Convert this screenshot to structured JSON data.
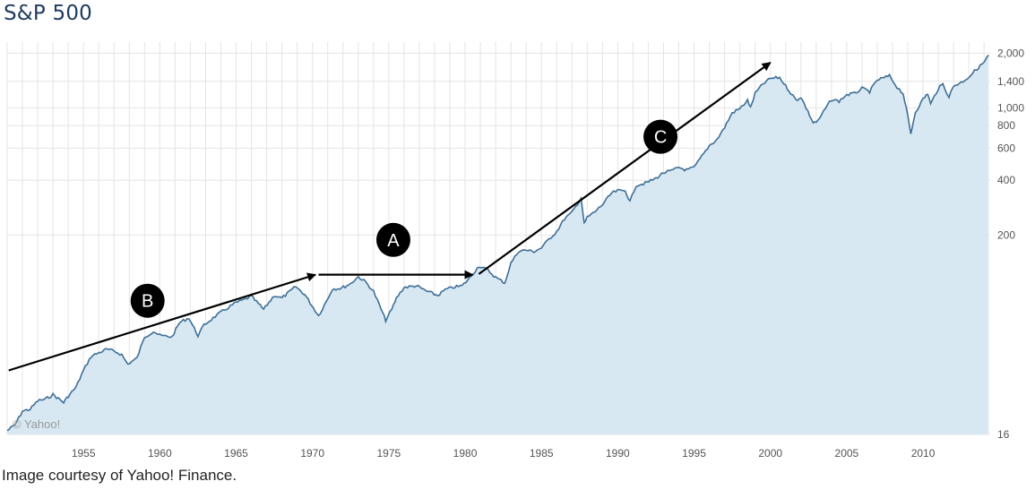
{
  "title": "S&P 500",
  "caption": "Image courtesy of Yahoo! Finance.",
  "watermark": "© Yahoo!",
  "colors": {
    "line": "#3f6f96",
    "fill": "#d8e8f3",
    "grid": "#e4e4e4",
    "arrow": "#000000",
    "marker": "#000000"
  },
  "chart_data": {
    "type": "area",
    "title": "S&P 500",
    "xlabel": "",
    "ylabel": "",
    "xlim": [
      1950,
      2014.4
    ],
    "ylim": [
      16,
      2300
    ],
    "y_scale": "log",
    "grid": true,
    "x_ticks": [
      {
        "value": 1955,
        "label": "1955"
      },
      {
        "value": 1960,
        "label": "1960"
      },
      {
        "value": 1965,
        "label": "1965"
      },
      {
        "value": 1970,
        "label": "1970"
      },
      {
        "value": 1975,
        "label": "1975"
      },
      {
        "value": 1980,
        "label": "1980"
      },
      {
        "value": 1985,
        "label": "1985"
      },
      {
        "value": 1990,
        "label": "1990"
      },
      {
        "value": 1995,
        "label": "1995"
      },
      {
        "value": 2000,
        "label": "2000"
      },
      {
        "value": 2005,
        "label": "2005"
      },
      {
        "value": 2010,
        "label": "2010"
      }
    ],
    "y_ticks": [
      {
        "value": 16,
        "label": "16"
      },
      {
        "value": 200,
        "label": "200"
      },
      {
        "value": 400,
        "label": "400"
      },
      {
        "value": 600,
        "label": "600"
      },
      {
        "value": 800,
        "label": "800"
      },
      {
        "value": 1000,
        "label": "1,000"
      },
      {
        "value": 1400,
        "label": "1,400"
      },
      {
        "value": 2000,
        "label": "2,000"
      }
    ],
    "series": [
      {
        "x": [
          1950.0,
          1950.5,
          1951.0,
          1951.5,
          1952.0,
          1952.5,
          1953.0,
          1953.7,
          1954.0,
          1954.5,
          1955.0,
          1955.5,
          1956.0,
          1956.5,
          1957.0,
          1957.5,
          1957.9,
          1958.5,
          1959.0,
          1959.6,
          1960.0,
          1960.8,
          1961.3,
          1961.9,
          1962.5,
          1962.9,
          1963.5,
          1964.0,
          1964.5,
          1965.0,
          1965.5,
          1966.0,
          1966.8,
          1967.5,
          1968.0,
          1968.9,
          1969.5,
          1970.4,
          1970.9,
          1971.3,
          1971.9,
          1972.5,
          1973.0,
          1973.5,
          1974.0,
          1974.5,
          1974.8,
          1975.2,
          1975.5,
          1976.0,
          1976.8,
          1977.5,
          1978.2,
          1978.7,
          1979.2,
          1979.8,
          1980.3,
          1980.9,
          1981.5,
          1982.0,
          1982.6,
          1983.0,
          1983.5,
          1984.0,
          1984.5,
          1985.0,
          1985.5,
          1986.0,
          1986.5,
          1987.0,
          1987.6,
          1987.8,
          1988.0,
          1988.5,
          1989.0,
          1989.6,
          1990.0,
          1990.5,
          1990.8,
          1991.2,
          1991.8,
          1992.5,
          1993.0,
          1993.5,
          1994.0,
          1994.5,
          1995.0,
          1995.5,
          1996.0,
          1996.5,
          1997.0,
          1997.5,
          1998.0,
          1998.5,
          1998.7,
          1999.0,
          1999.5,
          2000.0,
          2000.6,
          2001.0,
          2001.7,
          2002.0,
          2002.8,
          2003.1,
          2003.6,
          2004.0,
          2004.5,
          2005.0,
          2005.5,
          2006.0,
          2006.5,
          2007.0,
          2007.8,
          2008.3,
          2008.7,
          2009.0,
          2009.2,
          2009.5,
          2010.0,
          2010.3,
          2010.5,
          2011.0,
          2011.3,
          2011.7,
          2012.0,
          2012.5,
          2013.0,
          2013.5,
          2014.0,
          2014.3
        ],
        "y": [
          16.8,
          18,
          21.5,
          22,
          24.5,
          25,
          26.5,
          24,
          26,
          29,
          36,
          43,
          45,
          47,
          46,
          44,
          39,
          42,
          55,
          59,
          56,
          55,
          66,
          70,
          56,
          64,
          70,
          75,
          80,
          85,
          88,
          92,
          78,
          93,
          90,
          104,
          94,
          72,
          86,
          101,
          102,
          108,
          118,
          110,
          98,
          78,
          68,
          78,
          90,
          103,
          105,
          98,
          93,
          100,
          103,
          105,
          116,
          135,
          128,
          117,
          109,
          140,
          163,
          165,
          162,
          170,
          190,
          209,
          245,
          266,
          320,
          230,
          250,
          268,
          294,
          340,
          350,
          350,
          305,
          375,
          385,
          410,
          440,
          450,
          470,
          455,
          470,
          540,
          620,
          670,
          780,
          940,
          990,
          1100,
          1000,
          1200,
          1350,
          1450,
          1470,
          1320,
          1100,
          1150,
          830,
          840,
          990,
          1110,
          1090,
          1180,
          1200,
          1280,
          1230,
          1420,
          1500,
          1300,
          1200,
          900,
          720,
          950,
          1115,
          1200,
          1050,
          1280,
          1350,
          1150,
          1320,
          1380,
          1480,
          1630,
          1780,
          1950
        ]
      }
    ],
    "annotations": [
      {
        "label": "A",
        "from": {
          "x": 1970.4,
          "y": 121
        },
        "to": {
          "x": 1980.5,
          "y": 121
        },
        "marker": {
          "x": 1975.3,
          "y": 188
        }
      },
      {
        "label": "B",
        "from": {
          "x": 1950.1,
          "y": 36
        },
        "to": {
          "x": 1970.2,
          "y": 121
        },
        "marker": {
          "x": 1959.2,
          "y": 87
        }
      },
      {
        "label": "C",
        "from": {
          "x": 1980.9,
          "y": 122
        },
        "to": {
          "x": 2000.0,
          "y": 1775
        },
        "marker": {
          "x": 1992.8,
          "y": 694
        }
      }
    ]
  }
}
